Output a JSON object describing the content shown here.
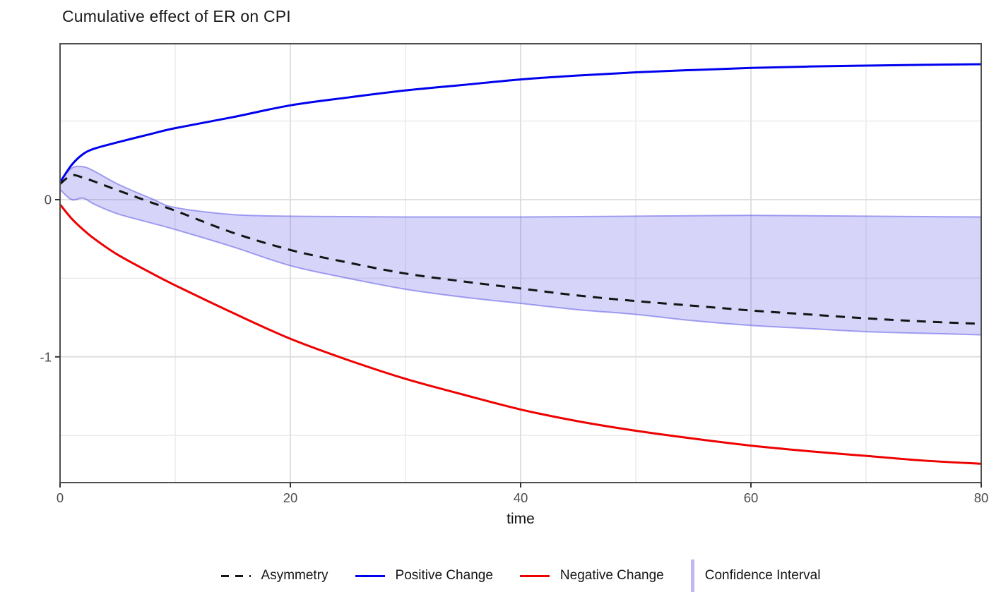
{
  "header": {
    "title": "Cumulative effect of ER on CPI"
  },
  "chart_data": {
    "type": "line",
    "title": "Cumulative effect of ER on CPI",
    "xlabel": "time",
    "ylabel": "",
    "xlim": [
      0,
      80
    ],
    "ylim": [
      -1.8,
      0.992
    ],
    "xticks": {
      "major": [
        0,
        20,
        40,
        60,
        80
      ],
      "minor": [
        10,
        30,
        50,
        70
      ]
    },
    "yticks": {
      "major": [
        0,
        -1
      ],
      "minor": [
        0.5,
        -0.5,
        -1.5
      ]
    },
    "grid": true,
    "legend_position": "bottom",
    "x": [
      0,
      1,
      2,
      3,
      5,
      8,
      10,
      15,
      20,
      25,
      30,
      35,
      40,
      45,
      50,
      55,
      60,
      65,
      70,
      75,
      80
    ],
    "series": [
      {
        "name": "Asymmetry",
        "style": "dashed",
        "color": "#141414",
        "values": [
          0.1,
          0.155,
          0.14,
          0.115,
          0.06,
          -0.02,
          -0.07,
          -0.21,
          -0.32,
          -0.4,
          -0.47,
          -0.52,
          -0.565,
          -0.61,
          -0.645,
          -0.675,
          -0.705,
          -0.73,
          -0.755,
          -0.775,
          -0.79
        ]
      },
      {
        "name": "Positive Change",
        "style": "solid",
        "color": "#0000EE",
        "values": [
          0.11,
          0.22,
          0.29,
          0.325,
          0.365,
          0.42,
          0.455,
          0.525,
          0.6,
          0.65,
          0.695,
          0.73,
          0.765,
          0.79,
          0.81,
          0.825,
          0.838,
          0.847,
          0.853,
          0.858,
          0.862
        ]
      },
      {
        "name": "Negative Change",
        "style": "solid",
        "color": "#EE0000",
        "values": [
          -0.03,
          -0.12,
          -0.19,
          -0.25,
          -0.35,
          -0.47,
          -0.545,
          -0.72,
          -0.885,
          -1.02,
          -1.14,
          -1.24,
          -1.335,
          -1.41,
          -1.47,
          -1.52,
          -1.565,
          -1.6,
          -1.63,
          -1.66,
          -1.68
        ]
      }
    ],
    "confidence_band": {
      "name": "Confidence Interval",
      "fill": "rgba(84,78,232,0.24)",
      "edge": "rgba(84,78,232,0.50)",
      "upper": [
        0.12,
        0.2,
        0.21,
        0.18,
        0.1,
        0.005,
        -0.05,
        -0.095,
        -0.105,
        -0.108,
        -0.11,
        -0.11,
        -0.11,
        -0.108,
        -0.105,
        -0.102,
        -0.1,
        -0.102,
        -0.105,
        -0.108,
        -0.11
      ],
      "lower": [
        0.065,
        0.0,
        0.01,
        -0.03,
        -0.09,
        -0.15,
        -0.19,
        -0.3,
        -0.42,
        -0.5,
        -0.57,
        -0.62,
        -0.66,
        -0.7,
        -0.73,
        -0.77,
        -0.8,
        -0.82,
        -0.84,
        -0.85,
        -0.86
      ]
    },
    "legend": [
      {
        "label": "Asymmetry",
        "type": "dashed-line",
        "color": "#141414"
      },
      {
        "label": "Positive Change",
        "type": "line",
        "color": "#0000EE"
      },
      {
        "label": "Negative Change",
        "type": "line",
        "color": "#EE0000"
      },
      {
        "label": "Confidence Interval",
        "type": "ribbon",
        "color": "#BFB9F1"
      }
    ],
    "colors": {
      "grid_major": "#DCDCDC",
      "grid_minor": "#EBEBEB",
      "panel_border": "#4E4E4E",
      "tick_mark": "#333333",
      "tick_label": "#4d4d4d"
    }
  }
}
